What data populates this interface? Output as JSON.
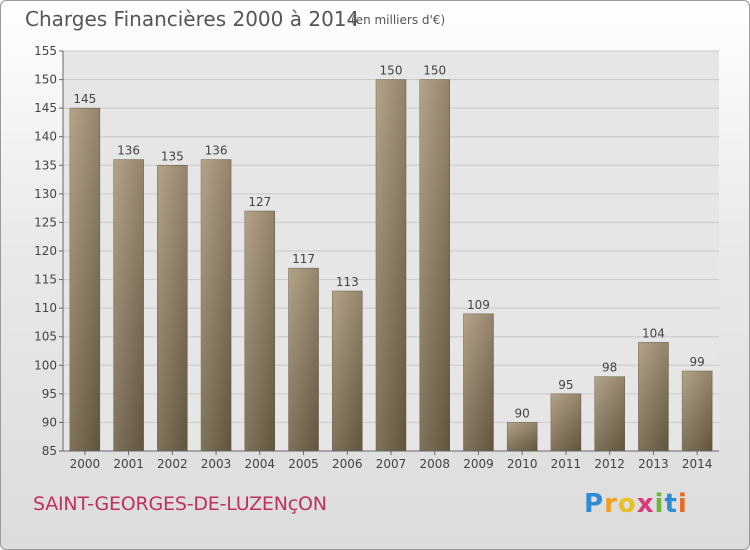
{
  "title": "Charges Financières 2000 à 2014",
  "unit": "(en milliers d'€)",
  "town": "SAINT-GEORGES-DE-LUZENçON",
  "brand": {
    "text": "Proxiti",
    "letters": [
      {
        "ch": "P",
        "color": "#2e8bd4"
      },
      {
        "ch": "r",
        "color": "#f0a020"
      },
      {
        "ch": "o",
        "color": "#e8c020"
      },
      {
        "ch": "x",
        "color": "#d83a7a"
      },
      {
        "ch": "i",
        "color": "#6cb43a"
      },
      {
        "ch": "t",
        "color": "#2e8bd4"
      },
      {
        "ch": "i",
        "color": "#e86a20"
      }
    ]
  },
  "chart_data": {
    "type": "bar",
    "categories": [
      "2000",
      "2001",
      "2002",
      "2003",
      "2004",
      "2005",
      "2006",
      "2007",
      "2008",
      "2009",
      "2010",
      "2011",
      "2012",
      "2013",
      "2014"
    ],
    "values": [
      145,
      136,
      135,
      136,
      127,
      117,
      113,
      150,
      150,
      109,
      90,
      95,
      98,
      104,
      99
    ],
    "ylim": [
      85,
      155
    ],
    "yticks": [
      85,
      90,
      95,
      100,
      105,
      110,
      115,
      120,
      125,
      130,
      135,
      140,
      145,
      150,
      155
    ],
    "grid": true,
    "bar_color": "#8c7b60"
  }
}
